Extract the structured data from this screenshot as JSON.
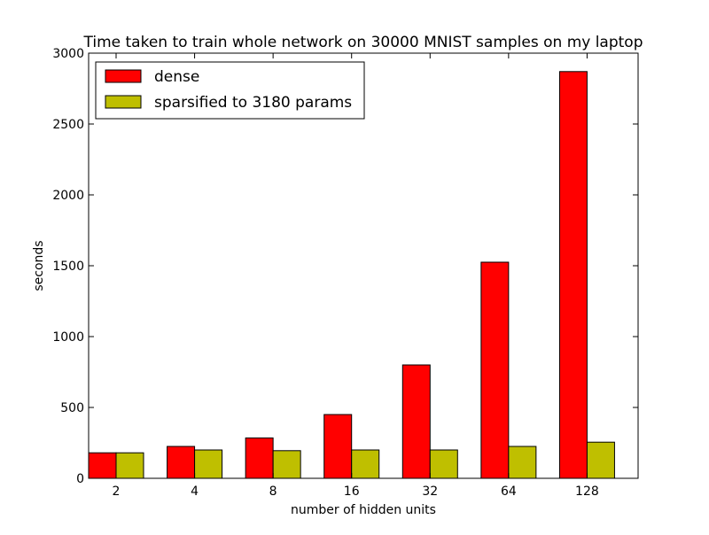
{
  "chart_data": {
    "type": "bar",
    "title": "Time taken to train whole network on 30000 MNIST samples on my laptop",
    "xlabel": "number of hidden units",
    "ylabel": "seconds",
    "categories": [
      "2",
      "4",
      "8",
      "16",
      "32",
      "64",
      "128"
    ],
    "series": [
      {
        "name": "dense",
        "color": "#ff0000",
        "values": [
          180,
          225,
          285,
          450,
          800,
          1525,
          2870
        ]
      },
      {
        "name": "sparsified to 3180 params",
        "color": "#bfbf00",
        "values": [
          180,
          200,
          195,
          200,
          200,
          225,
          255
        ]
      }
    ],
    "ylim": [
      0,
      3000
    ],
    "yticks": [
      0,
      500,
      1000,
      1500,
      2000,
      2500,
      3000
    ],
    "grid": false,
    "legend": "top-left"
  }
}
